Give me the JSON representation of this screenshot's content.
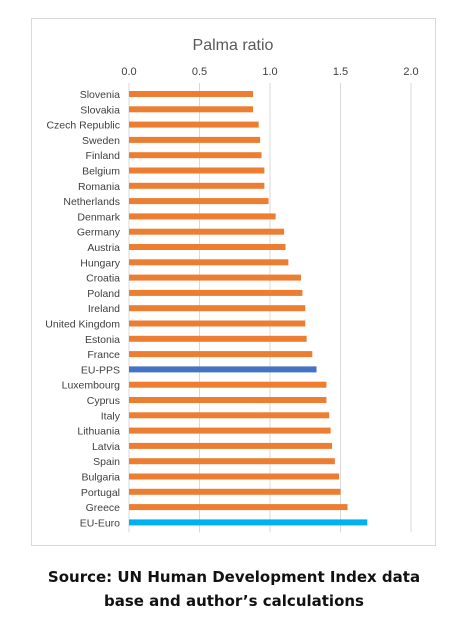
{
  "chart_data": {
    "type": "bar",
    "orientation": "horizontal",
    "title": "Palma ratio",
    "xlabel": "",
    "ylabel": "",
    "xlim": [
      0,
      2
    ],
    "ticks": [
      "0.0",
      "0.5",
      "1.0",
      "1.5",
      "2.0"
    ],
    "grid": true,
    "legend": "none",
    "categories": [
      "Slovenia",
      "Slovakia",
      "Czech Republic",
      "Sweden",
      "Finland",
      "Belgium",
      "Romania",
      "Netherlands",
      "Denmark",
      "Germany",
      "Austria",
      "Hungary",
      "Croatia",
      "Poland",
      "Ireland",
      "United Kingdom",
      "Estonia",
      "France",
      "EU-PPS",
      "Luxembourg",
      "Cyprus",
      "Italy",
      "Lithuania",
      "Latvia",
      "Spain",
      "Bulgaria",
      "Portugal",
      "Greece",
      "EU-Euro"
    ],
    "values": [
      0.88,
      0.88,
      0.92,
      0.93,
      0.94,
      0.96,
      0.96,
      0.99,
      1.04,
      1.1,
      1.11,
      1.13,
      1.22,
      1.23,
      1.25,
      1.25,
      1.26,
      1.3,
      1.33,
      1.4,
      1.4,
      1.42,
      1.43,
      1.44,
      1.46,
      1.49,
      1.5,
      1.55,
      1.69
    ],
    "colors": {
      "default": "#ED7D31",
      "EU-PPS": "#4472C4",
      "EU-Euro": "#00B0F0",
      "grid": "#d9d9d9",
      "text": "#404040",
      "title": "#595959"
    }
  },
  "caption": {
    "line1": "Source: UN Human Development Index data",
    "line2": "base and author’s calculations"
  }
}
